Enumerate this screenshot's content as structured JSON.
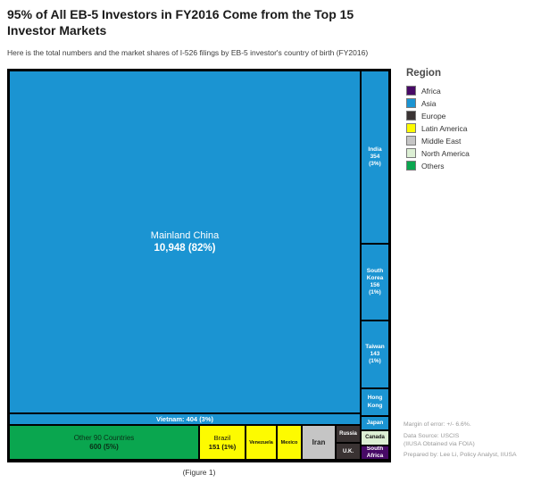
{
  "header": {
    "title": "95% of All EB-5 Investors in FY2016 Come from the Top 15\nInvestor Markets",
    "subtitle": "Here is the total numbers and the market shares of I-526 filings by EB-5 investor's country of birth (FY2016)"
  },
  "colors": {
    "africa": "#470a66",
    "asia": "#1b94d2",
    "europe": "#3a3333",
    "latin_america": "#fdfb00",
    "middle_east": "#c5c5c5",
    "north_america": "#dcefd4",
    "others": "#0aa64f"
  },
  "legend": {
    "title": "Region",
    "items": [
      {
        "label": "Africa",
        "color": "#470a66"
      },
      {
        "label": "Asia",
        "color": "#1b94d2"
      },
      {
        "label": "Europe",
        "color": "#3a3333"
      },
      {
        "label": "Latin America",
        "color": "#fdfb00"
      },
      {
        "label": "Middle East",
        "color": "#c5c5c5"
      },
      {
        "label": "North America",
        "color": "#dcefd4"
      },
      {
        "label": "Others",
        "color": "#0aa64f"
      }
    ]
  },
  "chart_data": {
    "type": "treemap",
    "title": "95% of All EB-5 Investors in FY2016 Come from the Top 15 Investor Markets",
    "unit": "I-526 filings by EB-5 investor's country of birth (FY2016)",
    "legend_position": "right",
    "nodes": [
      {
        "name": "Mainland China",
        "region": "Asia",
        "value": 10948,
        "share_pct": 82
      },
      {
        "name": "Other 90 Countries",
        "region": "Others",
        "value": 600,
        "share_pct": 5
      },
      {
        "name": "Vietnam",
        "region": "Asia",
        "value": 404,
        "share_pct": 3
      },
      {
        "name": "India",
        "region": "Asia",
        "value": 354,
        "share_pct": 3
      },
      {
        "name": "South Korea",
        "region": "Asia",
        "value": 156,
        "share_pct": 1
      },
      {
        "name": "Brazil",
        "region": "Latin America",
        "value": 151,
        "share_pct": 1
      },
      {
        "name": "Taiwan",
        "region": "Asia",
        "value": 143,
        "share_pct": 1
      },
      {
        "name": "Hong Kong",
        "region": "Asia",
        "value": null,
        "share_pct": null
      },
      {
        "name": "Japan",
        "region": "Asia",
        "value": null,
        "share_pct": null
      },
      {
        "name": "Venezuela",
        "region": "Latin America",
        "value": null,
        "share_pct": null
      },
      {
        "name": "Mexico",
        "region": "Latin America",
        "value": null,
        "share_pct": null
      },
      {
        "name": "Iran",
        "region": "Middle East",
        "value": null,
        "share_pct": null
      },
      {
        "name": "Russia",
        "region": "Europe",
        "value": null,
        "share_pct": null
      },
      {
        "name": "U.K.",
        "region": "Europe",
        "value": null,
        "share_pct": null
      },
      {
        "name": "Canada",
        "region": "North America",
        "value": null,
        "share_pct": null
      },
      {
        "name": "South Africa",
        "region": "Africa",
        "value": null,
        "share_pct": null
      }
    ]
  },
  "treemap_labels": {
    "china": {
      "name": "Mainland China",
      "value": "10,948 (82%)"
    },
    "india": {
      "label": "India\n354\n(3%)"
    },
    "south_korea": {
      "label": "South\nKorea\n156\n(1%)"
    },
    "taiwan": {
      "label": "Taiwan\n143\n(1%)"
    },
    "hong_kong": {
      "label": "Hong\nKong"
    },
    "japan": {
      "label": "Japan"
    },
    "vietnam": {
      "label": "Vietnam: 404 (3%)"
    },
    "others": {
      "name": "Other 90 Countries",
      "value": "600 (5%)"
    },
    "brazil": {
      "name": "Brazil",
      "value": "151 (1%)"
    },
    "venezuela": {
      "label": "Venezuela"
    },
    "mexico": {
      "label": "Mexico"
    },
    "iran": {
      "label": "Iran"
    },
    "russia": {
      "label": "Russia"
    },
    "uk": {
      "label": "U.K."
    },
    "canada": {
      "label": "Canada"
    },
    "south_africa": {
      "label": "South\nAfrica"
    }
  },
  "footnotes": {
    "margin_of_error": "Margin of error: +/- 6.6%.",
    "data_source": "Data Source: USCIS\n(IIUSA Obtained via FOIA)",
    "prepared_by": "Prepared by: Lee Li, Policy Analyst, IIUSA"
  },
  "caption": "(Figure 1)"
}
